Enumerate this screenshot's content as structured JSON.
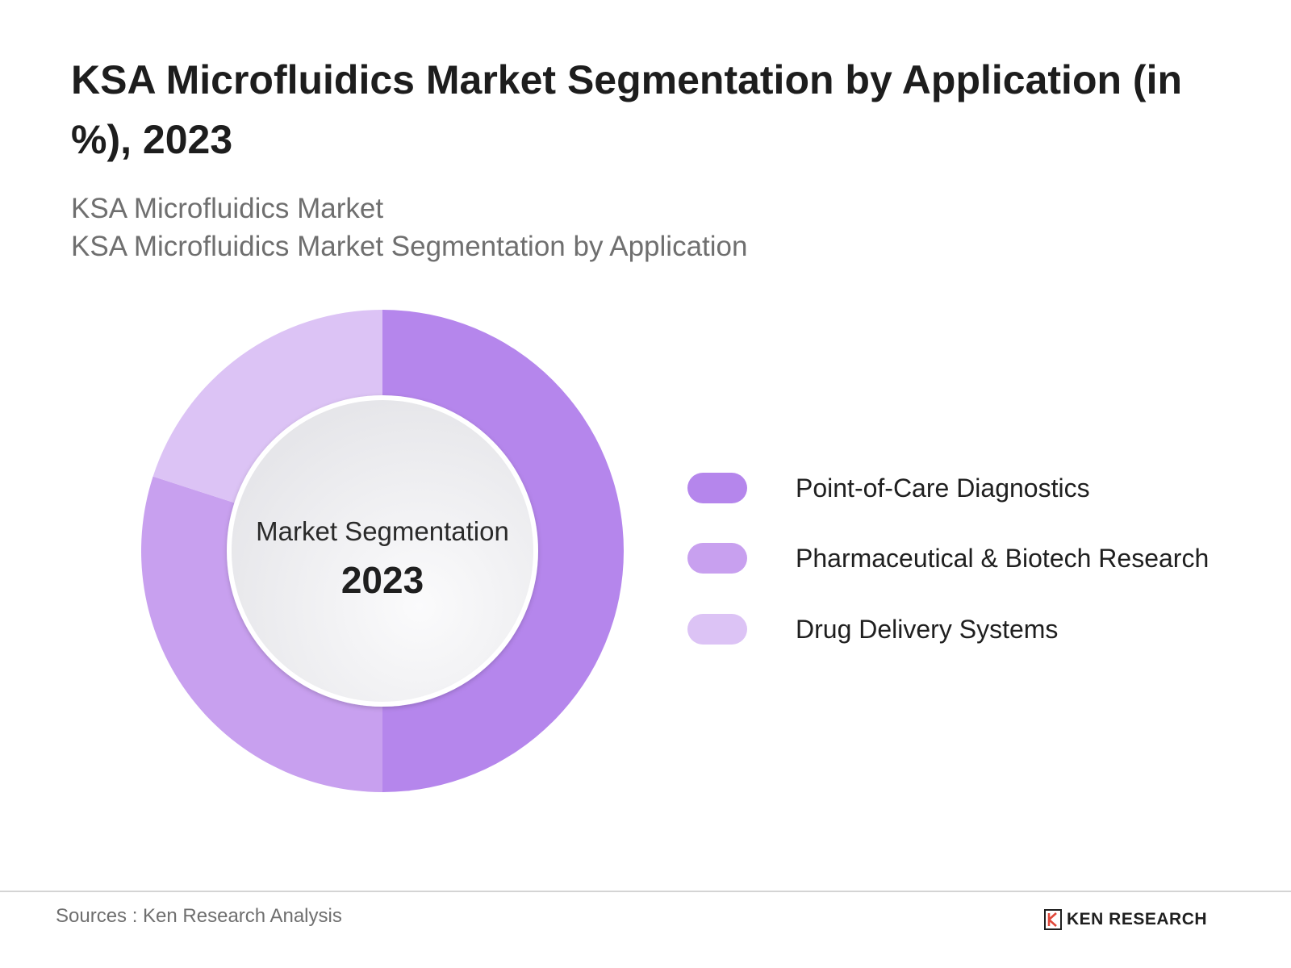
{
  "title": "KSA Microfluidics Market Segmentation by Application (in %), 2023",
  "subtitle_1": "KSA Microfluidics Market",
  "subtitle_2": "KSA Microfluidics Market Segmentation by Application",
  "center": {
    "label": "Market Segmentation",
    "year": "2023"
  },
  "chart_data": {
    "type": "pie",
    "variant": "donut",
    "categories": [
      "Point-of-Care Diagnostics",
      "Pharmaceutical & Biotech Research",
      "Drug Delivery Systems"
    ],
    "values": [
      50,
      30,
      20
    ],
    "colors": [
      "#b586ec",
      "#c8a0ef",
      "#dcc3f5"
    ],
    "legend_position": "right"
  },
  "footer": {
    "source": "Sources : Ken Research Analysis",
    "brand": "KEN RESEARCH"
  }
}
